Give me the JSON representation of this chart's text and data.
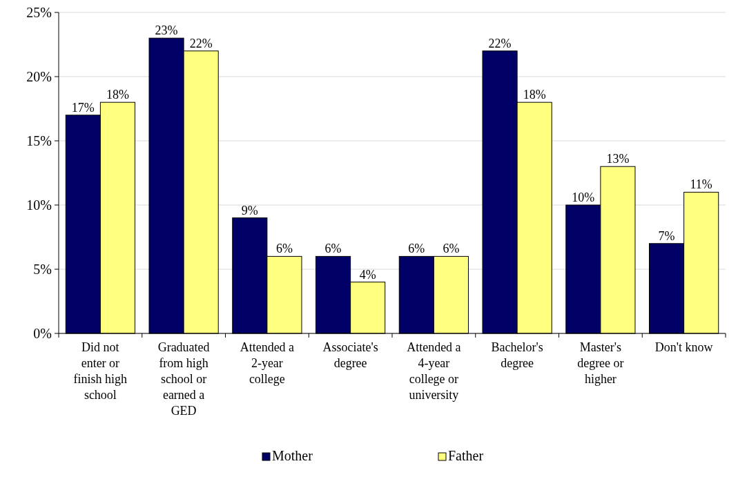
{
  "chart_data": {
    "type": "bar",
    "categories": [
      "Did not enter or finish high school",
      "Graduated from high school or earned a GED",
      "Attended a 2-year college",
      "Associate's degree",
      "Attended a 4-year college or university",
      "Bachelor's degree",
      "Master's degree or higher",
      "Don't know"
    ],
    "series": [
      {
        "name": "Mother",
        "color": "#000066",
        "values": [
          17,
          23,
          9,
          6,
          6,
          22,
          10,
          7
        ],
        "value_labels": [
          "17%",
          "23%",
          "9%",
          "6%",
          "6%",
          "22%",
          "10%",
          "7%"
        ]
      },
      {
        "name": "Father",
        "color": "#ffff80",
        "values": [
          18,
          22,
          6,
          4,
          6,
          18,
          13,
          11
        ],
        "value_labels": [
          "18%",
          "22%",
          "6%",
          "4%",
          "6%",
          "18%",
          "13%",
          "11%"
        ]
      }
    ],
    "ylim": [
      0,
      25
    ],
    "yticks": [
      {
        "value": 0,
        "label": "0%"
      },
      {
        "value": 5,
        "label": "5%"
      },
      {
        "value": 10,
        "label": "10%"
      },
      {
        "value": 15,
        "label": "15%"
      },
      {
        "value": 20,
        "label": "20%"
      },
      {
        "value": 25,
        "label": "25%"
      }
    ],
    "grid": "y",
    "legend": "bottom"
  }
}
